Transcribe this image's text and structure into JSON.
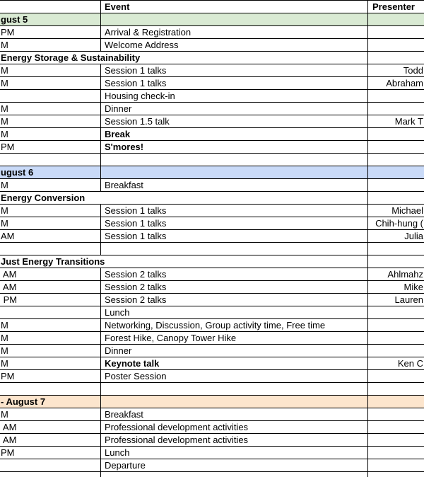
{
  "table": {
    "header": {
      "time_label": "",
      "event_label": "Event",
      "presenter_label": "Presenter"
    },
    "colors": {
      "day_green": "#d9ead3",
      "day_blue": "#c9daf8",
      "day_orange": "#fce5cd",
      "grid_border": "#000000"
    },
    "rows": [
      {
        "type": "day",
        "color": "day_green",
        "label": "gust 5"
      },
      {
        "type": "item",
        "time": "PM",
        "event": "Arrival & Registration",
        "presenter": ""
      },
      {
        "type": "item",
        "time": "M",
        "event": "Welcome Address",
        "presenter": ""
      },
      {
        "type": "section",
        "label": "Energy Storage & Sustainability"
      },
      {
        "type": "item",
        "time": "M",
        "event": "Session 1 talks",
        "presenter": "Todd"
      },
      {
        "type": "item",
        "time": "M",
        "event": "Session 1 talks",
        "presenter": "Abraham"
      },
      {
        "type": "item",
        "time": "",
        "event": "Housing check-in",
        "presenter": ""
      },
      {
        "type": "item",
        "time": "M",
        "event": "Dinner",
        "presenter": ""
      },
      {
        "type": "item",
        "time": "M",
        "event": "Session 1.5 talk",
        "presenter": "Mark T"
      },
      {
        "type": "item",
        "time": "M",
        "event": "Break",
        "event_bold": true,
        "presenter": ""
      },
      {
        "type": "item",
        "time": "PM",
        "event": "S'mores!",
        "event_bold": true,
        "presenter": ""
      },
      {
        "type": "blank"
      },
      {
        "type": "day",
        "color": "day_blue",
        "label": "ugust 6"
      },
      {
        "type": "item",
        "time": "M",
        "event": "Breakfast",
        "presenter": ""
      },
      {
        "type": "section",
        "label": "Energy Conversion"
      },
      {
        "type": "item",
        "time": "M",
        "event": "Session 1 talks",
        "presenter": "Michael"
      },
      {
        "type": "item",
        "time": "M",
        "event": "Session 1 talks",
        "presenter": "Chih-hung ("
      },
      {
        "type": "item",
        "time": "AM",
        "event": "Session 1 talks",
        "presenter": "Julia"
      },
      {
        "type": "blank"
      },
      {
        "type": "section",
        "label": "Just Energy Transitions"
      },
      {
        "type": "item",
        "time": " AM",
        "event": "Session 2 talks",
        "presenter": "Ahlmahz"
      },
      {
        "type": "item",
        "time": " AM",
        "event": "Session 2 talks",
        "presenter": "Mike"
      },
      {
        "type": "item",
        "time": " PM",
        "event": "Session 2 talks",
        "presenter": "Lauren"
      },
      {
        "type": "item",
        "time": "",
        "event": "Lunch",
        "presenter": ""
      },
      {
        "type": "item",
        "time": "M",
        "event": "Networking, Discussion, Group activity time, Free time",
        "presenter": ""
      },
      {
        "type": "item",
        "time": "M",
        "event": "Forest Hike, Canopy Tower Hike",
        "presenter": ""
      },
      {
        "type": "item",
        "time": "M",
        "event": "Dinner",
        "presenter": ""
      },
      {
        "type": "item",
        "time": "M",
        "event": "Keynote talk",
        "event_bold": true,
        "presenter": "Ken C"
      },
      {
        "type": "item",
        "time": "PM",
        "event": "Poster Session",
        "presenter": ""
      },
      {
        "type": "blank"
      },
      {
        "type": "day",
        "color": "day_orange",
        "label": "- August 7"
      },
      {
        "type": "item",
        "time": "M",
        "event": "Breakfast",
        "presenter": ""
      },
      {
        "type": "item",
        "time": " AM",
        "event": "Professional development activities",
        "presenter": ""
      },
      {
        "type": "item",
        "time": " AM",
        "event": "Professional development activities",
        "presenter": ""
      },
      {
        "type": "item",
        "time": "PM",
        "event": "Lunch",
        "presenter": ""
      },
      {
        "type": "item",
        "time": "",
        "event": "Departure",
        "presenter": ""
      },
      {
        "type": "blank"
      }
    ]
  }
}
